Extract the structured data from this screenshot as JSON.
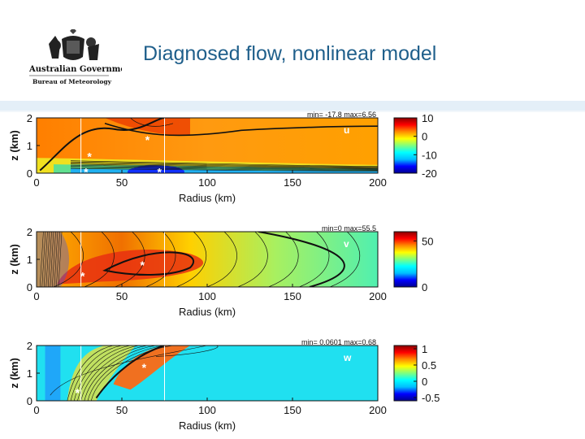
{
  "slide": {
    "title": "Diagnosed flow, nonlinear model",
    "logo": {
      "org_line1": "Australian Government",
      "org_line2": "Bureau of Meteorology",
      "icon": "coat-of-arms-icon"
    }
  },
  "colors": {
    "title": "#1f5f8b",
    "band": "#e4eff8",
    "colormap": [
      "#00008f",
      "#0000ff",
      "#00bfff",
      "#00ffff",
      "#7fff7f",
      "#ffff00",
      "#ff8c00",
      "#ff0000",
      "#8b0000"
    ]
  },
  "chart_data": [
    {
      "type": "heatmap",
      "field_label": "u",
      "stats_text": "min= -17.8 max=6.56",
      "xlabel": "Radius (km)",
      "ylabel": "z (km)",
      "xlim": [
        0,
        200
      ],
      "ylim": [
        0,
        2
      ],
      "xticks": [
        0,
        50,
        100,
        150,
        200
      ],
      "yticks": [
        0,
        1,
        2
      ],
      "colorbar": {
        "ticks": [
          "10",
          "0",
          "-10",
          "-20"
        ],
        "range": [
          -20,
          10
        ]
      },
      "markers": [
        [
          65,
          1.2
        ],
        [
          31,
          0.6
        ],
        [
          29,
          0.05
        ],
        [
          72,
          0.05
        ]
      ],
      "vertical_lines_km": [
        26,
        75
      ]
    },
    {
      "type": "heatmap",
      "field_label": "v",
      "stats_text": "min=0 max=55.5",
      "xlabel": "Radius (km)",
      "ylabel": "z (km)",
      "xlim": [
        0,
        200
      ],
      "ylim": [
        0,
        2
      ],
      "xticks": [
        0,
        50,
        100,
        150,
        200
      ],
      "yticks": [
        0,
        1,
        2
      ],
      "colorbar": {
        "ticks": [
          "50",
          "0"
        ],
        "range": [
          0,
          60
        ]
      },
      "markers": [
        [
          62,
          0.8
        ],
        [
          27,
          0.4
        ]
      ],
      "vertical_lines_km": [
        26,
        75
      ]
    },
    {
      "type": "heatmap",
      "field_label": "w",
      "stats_text": "min= 0.0601 max=0.68",
      "xlabel": "Radius (km)",
      "ylabel": "z (km)",
      "xlim": [
        0,
        200
      ],
      "ylim": [
        0,
        2
      ],
      "xticks": [
        0,
        50,
        100,
        150,
        200
      ],
      "yticks": [
        0,
        1,
        2
      ],
      "colorbar": {
        "ticks": [
          "1",
          "0.5",
          "0",
          "-0.5"
        ],
        "range": [
          -0.6,
          1.1
        ]
      },
      "markers": [
        [
          63,
          1.2
        ],
        [
          24,
          0.3
        ]
      ],
      "vertical_lines_km": [
        26,
        75
      ]
    }
  ]
}
